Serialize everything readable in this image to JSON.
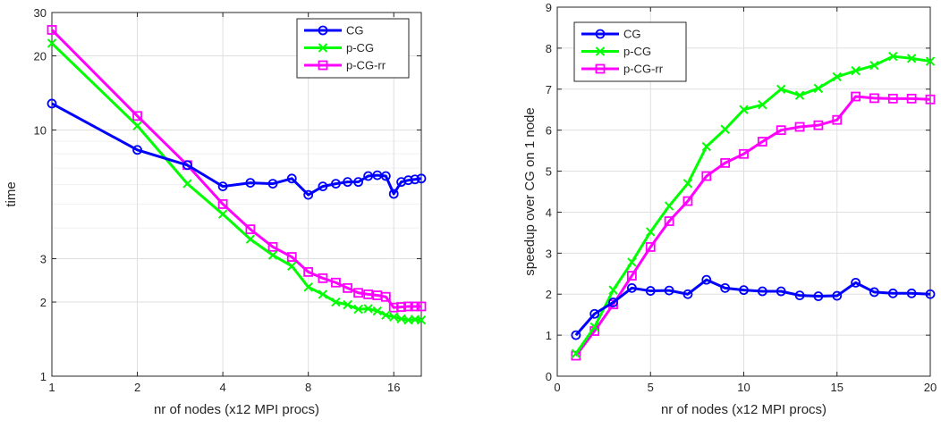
{
  "chart_data": [
    {
      "type": "line",
      "xscale": "log2",
      "yscale": "log10",
      "xlabel": "nr of nodes (x12 MPI procs)",
      "ylabel": "time",
      "xlim": [
        1,
        20
      ],
      "ylim": [
        1,
        30
      ],
      "xticks": [
        1,
        2,
        4,
        8,
        16
      ],
      "xtick_labels": [
        "1",
        "2",
        "4",
        "8",
        "16"
      ],
      "yticks": [
        1,
        2,
        3,
        10,
        20,
        30
      ],
      "ytick_labels": [
        "1",
        "2",
        "3",
        "10",
        "20",
        "30"
      ],
      "grid": true,
      "legend_position": "top-right",
      "series": [
        {
          "name": "CG",
          "color": "#0000ff",
          "marker": "circle",
          "x": [
            1,
            2,
            3,
            4,
            5,
            6,
            7,
            8,
            9,
            10,
            11,
            12,
            13,
            14,
            15,
            16,
            17,
            18,
            19,
            20
          ],
          "y": [
            12.8,
            8.3,
            7.2,
            5.9,
            6.1,
            6.05,
            6.35,
            5.45,
            5.9,
            6.05,
            6.15,
            6.15,
            6.5,
            6.55,
            6.5,
            5.5,
            6.15,
            6.25,
            6.3,
            6.35
          ]
        },
        {
          "name": "p-CG",
          "color": "#00ff00",
          "marker": "cross",
          "x": [
            1,
            2,
            3,
            4,
            5,
            6,
            7,
            8,
            9,
            10,
            11,
            12,
            13,
            14,
            15,
            16,
            17,
            18,
            19,
            20
          ],
          "y": [
            22.5,
            10.4,
            6.05,
            4.55,
            3.6,
            3.1,
            2.8,
            2.3,
            2.15,
            2.0,
            1.95,
            1.87,
            1.88,
            1.84,
            1.77,
            1.74,
            1.71,
            1.69,
            1.7,
            1.69
          ]
        },
        {
          "name": "p-CG-rr",
          "color": "#ff00ff",
          "marker": "square",
          "x": [
            1,
            2,
            3,
            4,
            5,
            6,
            7,
            8,
            9,
            10,
            11,
            12,
            13,
            14,
            15,
            16,
            17,
            18,
            19,
            20
          ],
          "y": [
            25.5,
            11.4,
            7.2,
            5.0,
            3.95,
            3.35,
            3.05,
            2.65,
            2.5,
            2.4,
            2.28,
            2.18,
            2.15,
            2.13,
            2.1,
            1.9,
            1.91,
            1.92,
            1.92,
            1.92
          ]
        }
      ]
    },
    {
      "type": "line",
      "xscale": "linear",
      "yscale": "linear",
      "xlabel": "nr of nodes (x12 MPI procs)",
      "ylabel": "speedup over CG on 1 node",
      "xlim": [
        0,
        20
      ],
      "ylim": [
        0,
        9
      ],
      "xticks": [
        0,
        5,
        10,
        15,
        20
      ],
      "xtick_labels": [
        "0",
        "5",
        "10",
        "15",
        "20"
      ],
      "yticks": [
        0,
        1,
        2,
        3,
        4,
        5,
        6,
        7,
        8,
        9
      ],
      "ytick_labels": [
        "0",
        "1",
        "2",
        "3",
        "4",
        "5",
        "6",
        "7",
        "8",
        "9"
      ],
      "grid": true,
      "legend_position": "top-left",
      "series": [
        {
          "name": "CG",
          "color": "#0000ff",
          "marker": "circle",
          "x": [
            1,
            2,
            3,
            4,
            5,
            6,
            7,
            8,
            9,
            10,
            11,
            12,
            13,
            14,
            15,
            16,
            17,
            18,
            19,
            20
          ],
          "y": [
            1.0,
            1.52,
            1.8,
            2.15,
            2.08,
            2.09,
            2.0,
            2.35,
            2.15,
            2.1,
            2.07,
            2.07,
            1.97,
            1.95,
            1.96,
            2.28,
            2.05,
            2.02,
            2.02,
            2.0
          ]
        },
        {
          "name": "p-CG",
          "color": "#00ff00",
          "marker": "cross",
          "x": [
            1,
            2,
            3,
            4,
            5,
            6,
            7,
            8,
            9,
            10,
            11,
            12,
            13,
            14,
            15,
            16,
            17,
            18,
            19,
            20
          ],
          "y": [
            0.55,
            1.2,
            2.1,
            2.78,
            3.52,
            4.15,
            4.7,
            5.6,
            6.02,
            6.5,
            6.62,
            7.0,
            6.85,
            7.02,
            7.3,
            7.45,
            7.58,
            7.8,
            7.75,
            7.68
          ]
        },
        {
          "name": "p-CG-rr",
          "color": "#ff00ff",
          "marker": "square",
          "x": [
            1,
            2,
            3,
            4,
            5,
            6,
            7,
            8,
            9,
            10,
            11,
            12,
            13,
            14,
            15,
            16,
            17,
            18,
            19,
            20
          ],
          "y": [
            0.5,
            1.1,
            1.75,
            2.45,
            3.15,
            3.78,
            4.27,
            4.88,
            5.2,
            5.42,
            5.72,
            6.0,
            6.08,
            6.12,
            6.25,
            6.82,
            6.78,
            6.77,
            6.77,
            6.75
          ]
        }
      ]
    }
  ]
}
